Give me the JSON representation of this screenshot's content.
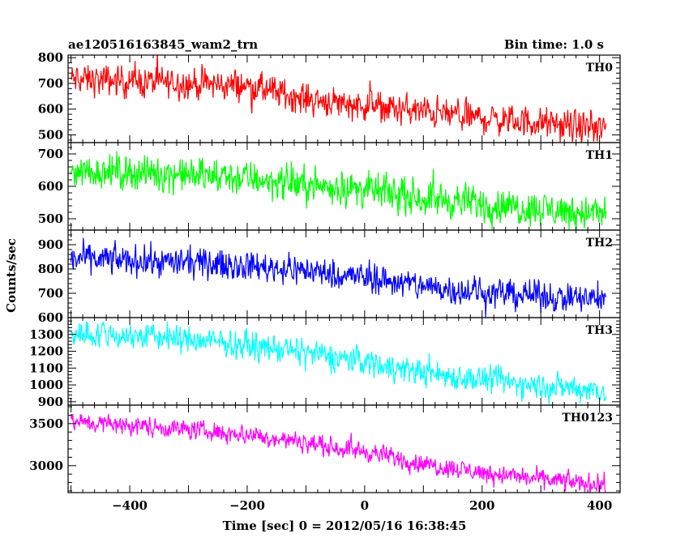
{
  "header": {
    "title": "ae120516163845_wam2_trn",
    "bin_time": "Bin time: 1.0 s"
  },
  "axes": {
    "xlabel": "Time [sec] 0 = 2012/05/16 16:38:45",
    "ylabel": "Counts/sec"
  },
  "chart_data": {
    "type": "line",
    "title": "ae120516163845_wam2_trn",
    "xlabel": "Time [sec] 0 = 2012/05/16 16:38:45",
    "ylabel": "Counts/sec",
    "xlim": [
      -505,
      435
    ],
    "x_ticks": [
      -400,
      -200,
      0,
      200,
      400
    ],
    "x_range": [
      -500,
      411
    ],
    "bin_time_s": 1.0,
    "grid": false,
    "legend": "none",
    "panels": [
      {
        "label": "TH0",
        "color": "#ff0000",
        "ylim": [
          470,
          810
        ],
        "y_ticks": [
          500,
          600,
          700,
          800
        ],
        "points": [
          [
            -500,
            715
          ],
          [
            -350,
            705
          ],
          [
            -200,
            690
          ],
          [
            -100,
            640
          ],
          [
            0,
            615
          ],
          [
            100,
            590
          ],
          [
            200,
            565
          ],
          [
            300,
            545
          ],
          [
            411,
            520
          ]
        ],
        "noise": 45
      },
      {
        "label": "TH1",
        "color": "#00ff00",
        "ylim": [
          465,
          735
        ],
        "y_ticks": [
          500,
          600,
          700
        ],
        "points": [
          [
            -500,
            650
          ],
          [
            -350,
            640
          ],
          [
            -200,
            625
          ],
          [
            -100,
            605
          ],
          [
            0,
            590
          ],
          [
            100,
            565
          ],
          [
            200,
            545
          ],
          [
            300,
            530
          ],
          [
            411,
            515
          ]
        ],
        "noise": 40
      },
      {
        "label": "TH2",
        "color": "#0000ff",
        "ylim": [
          600,
          960
        ],
        "y_ticks": [
          600,
          700,
          800,
          900
        ],
        "points": [
          [
            -500,
            845
          ],
          [
            -350,
            830
          ],
          [
            -200,
            815
          ],
          [
            -100,
            795
          ],
          [
            0,
            765
          ],
          [
            100,
            730
          ],
          [
            200,
            705
          ],
          [
            300,
            690
          ],
          [
            411,
            670
          ]
        ],
        "noise": 45
      },
      {
        "label": "TH3",
        "color": "#00ffff",
        "ylim": [
          880,
          1400
        ],
        "y_ticks": [
          900,
          1000,
          1100,
          1200,
          1300
        ],
        "points": [
          [
            -500,
            1310
          ],
          [
            -350,
            1285
          ],
          [
            -200,
            1235
          ],
          [
            -100,
            1190
          ],
          [
            0,
            1140
          ],
          [
            100,
            1075
          ],
          [
            200,
            1030
          ],
          [
            300,
            995
          ],
          [
            411,
            970
          ]
        ],
        "noise": 60
      },
      {
        "label": "TH0123",
        "color": "#ff00ff",
        "ylim": [
          2680,
          3720
        ],
        "y_ticks": [
          3000,
          3500
        ],
        "points": [
          [
            -500,
            3520
          ],
          [
            -350,
            3460
          ],
          [
            -200,
            3370
          ],
          [
            -100,
            3270
          ],
          [
            0,
            3170
          ],
          [
            100,
            3020
          ],
          [
            200,
            2920
          ],
          [
            300,
            2840
          ],
          [
            411,
            2770
          ]
        ],
        "noise": 85
      }
    ]
  }
}
